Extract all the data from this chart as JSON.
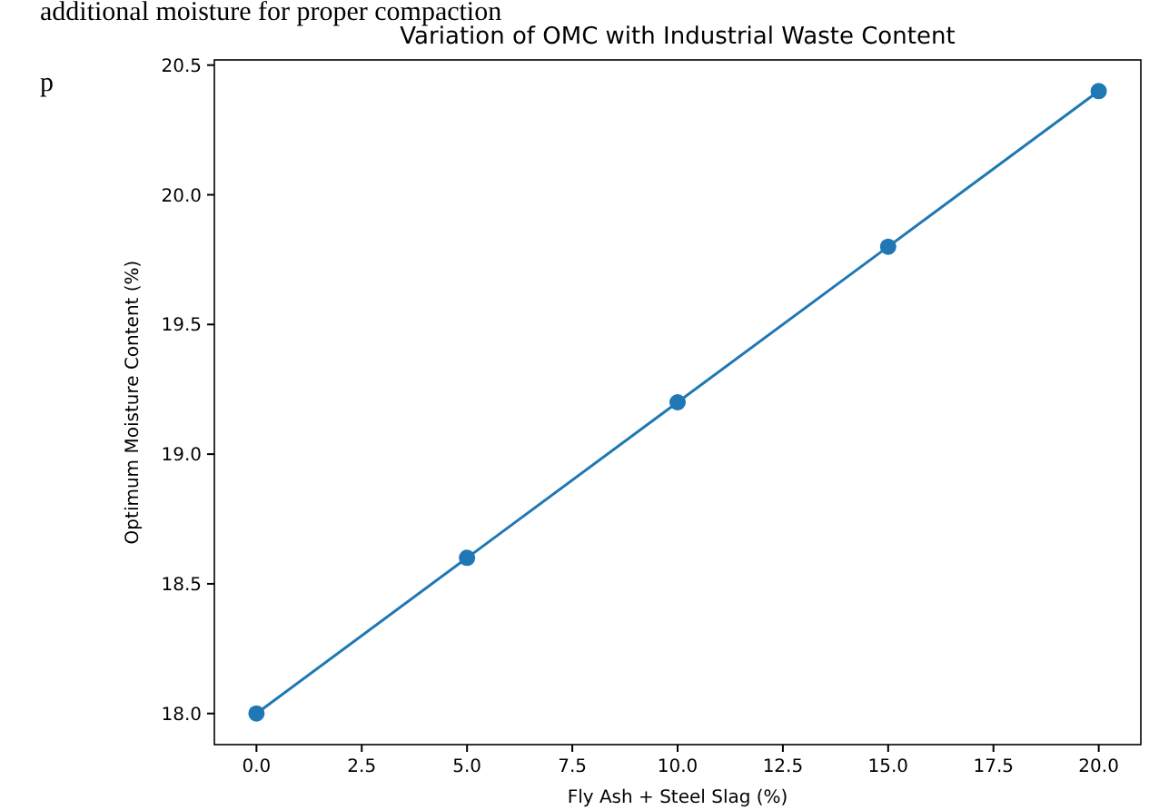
{
  "chart_data": {
    "type": "line",
    "title": "Variation of OMC with Industrial Waste Content",
    "xlabel": "Fly Ash + Steel Slag (%)",
    "ylabel": "Optimum Moisture Content (%)",
    "annotations": [
      "additional moisture for proper compaction",
      "p"
    ],
    "x": [
      0,
      5,
      10,
      15,
      20
    ],
    "series": [
      {
        "color": "#1f77b4",
        "values": [
          18.0,
          18.6,
          19.2,
          19.8,
          20.4
        ]
      }
    ],
    "xlim": [
      -1,
      21
    ],
    "ylim": [
      17.88,
      20.52
    ],
    "xticks": [
      {
        "value": 0,
        "label": "0.0"
      },
      {
        "value": 2.5,
        "label": "2.5"
      },
      {
        "value": 5,
        "label": "5.0"
      },
      {
        "value": 7.5,
        "label": "7.5"
      },
      {
        "value": 10,
        "label": "10.0"
      },
      {
        "value": 12.5,
        "label": "12.5"
      },
      {
        "value": 15,
        "label": "15.0"
      },
      {
        "value": 17.5,
        "label": "17.5"
      },
      {
        "value": 20,
        "label": "20.0"
      }
    ],
    "yticks": [
      {
        "value": 18,
        "label": "18.0"
      },
      {
        "value": 18.5,
        "label": "18.5"
      },
      {
        "value": 19,
        "label": "19.0"
      },
      {
        "value": 19.5,
        "label": "19.5"
      },
      {
        "value": 20,
        "label": "20.0"
      },
      {
        "value": 20.5,
        "label": "20.5"
      }
    ],
    "marker": "circle",
    "line_style": "solid",
    "grid": false
  }
}
